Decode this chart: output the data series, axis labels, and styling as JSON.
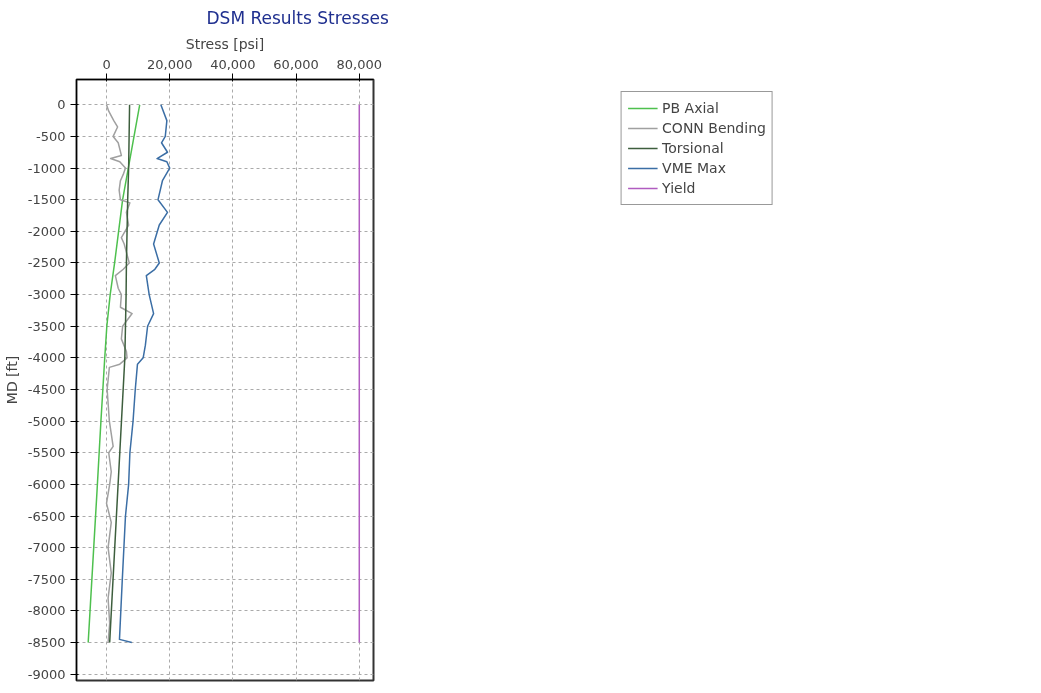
{
  "chart_data": {
    "type": "line",
    "title": "DSM Results Stresses",
    "xlabel": "Stress [psi]",
    "ylabel": "MD [ft]",
    "xlim": [
      -9500,
      84500
    ],
    "ylim": [
      -9100,
      400
    ],
    "xticks": [
      {
        "value": 0,
        "label": "0"
      },
      {
        "value": 20000,
        "label": "20,000"
      },
      {
        "value": 40000,
        "label": "40,000"
      },
      {
        "value": 60000,
        "label": "60,000"
      },
      {
        "value": 80000,
        "label": "80,000"
      }
    ],
    "yticks": [
      0,
      -500,
      -1000,
      -1500,
      -2000,
      -2500,
      -3000,
      -3500,
      -4000,
      -4500,
      -5000,
      -5500,
      -6000,
      -6500,
      -7000,
      -7500,
      -8000,
      -8500,
      -9000
    ],
    "grid": true,
    "legend": "top right",
    "marker": "none",
    "line_style": "solid",
    "series": [
      {
        "name": "PB Axial",
        "color": "#4ec04e",
        "x": [
          10500,
          5100,
          2560,
          1160,
          100,
          -560,
          -1160,
          -1770,
          -2330,
          -3000,
          -3700,
          -4400,
          -5100,
          -5800
        ],
        "values": [
          0,
          -1500,
          -2500,
          -3000,
          -3500,
          -4000,
          -4500,
          -5000,
          -5500,
          -6100,
          -6700,
          -7300,
          -7900,
          -8500
        ]
      },
      {
        "name": "CONN Bending",
        "color": "#a0a0a0",
        "x": [
          0,
          700,
          2300,
          3500,
          2100,
          3700,
          4700,
          1300,
          4200,
          6000,
          5300,
          4400,
          4000,
          4400,
          7400,
          6300,
          7000,
          4700,
          5600,
          7200,
          5300,
          2800,
          3700,
          4700,
          4400,
          8100,
          5100,
          4700,
          6300,
          6500,
          4200,
          900,
          200,
          900,
          2100,
          700,
          1500,
          1000,
          0,
          1500,
          500,
          1500,
          500,
          1000,
          500
        ],
        "values": [
          0,
          -100,
          -250,
          -350,
          -500,
          -600,
          -800,
          -850,
          -900,
          -1000,
          -1100,
          -1200,
          -1350,
          -1500,
          -1550,
          -1700,
          -1900,
          -2100,
          -2200,
          -2500,
          -2600,
          -2700,
          -2900,
          -3000,
          -3200,
          -3300,
          -3500,
          -3700,
          -3900,
          -4000,
          -4100,
          -4150,
          -4500,
          -5000,
          -5400,
          -5500,
          -5800,
          -6000,
          -6300,
          -6600,
          -7000,
          -7400,
          -7800,
          -8200,
          -8500
        ]
      },
      {
        "name": "Torsional",
        "color": "#3d5e3d",
        "x": [
          7300,
          7000,
          6700,
          6300,
          6200,
          5800,
          4200,
          1000
        ],
        "values": [
          0,
          -1000,
          -1500,
          -2500,
          -3000,
          -4000,
          -5500,
          -8500
        ]
      },
      {
        "name": "VME Max",
        "color": "#3b6ea5",
        "x": [
          17200,
          19100,
          18600,
          17400,
          19300,
          16000,
          19100,
          20000,
          17700,
          16300,
          19300,
          16700,
          14900,
          16700,
          15300,
          12600,
          13500,
          14900,
          13000,
          12300,
          11600,
          9800,
          9100,
          8400,
          7400,
          7000,
          6000,
          5000,
          4100,
          8000
        ],
        "values": [
          0,
          -250,
          -500,
          -600,
          -750,
          -850,
          -900,
          -1000,
          -1200,
          -1500,
          -1700,
          -1900,
          -2200,
          -2500,
          -2600,
          -2700,
          -3000,
          -3300,
          -3500,
          -3800,
          -4000,
          -4100,
          -4500,
          -5000,
          -5500,
          -6000,
          -6500,
          -7500,
          -8450,
          -8500
        ]
      },
      {
        "name": "Yield",
        "color": "#b05cc0",
        "x": [
          80000,
          80000
        ],
        "values": [
          0,
          -8500
        ]
      }
    ]
  }
}
